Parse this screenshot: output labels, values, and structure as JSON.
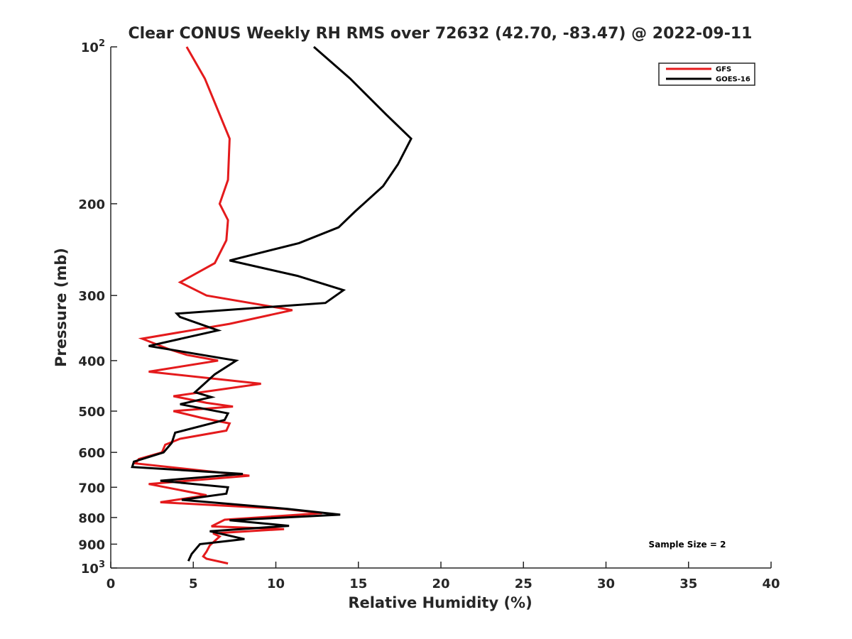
{
  "chart_data": {
    "type": "line",
    "title": "Clear CONUS Weekly RH RMS over 72632 (42.70, -83.47) @ 2022-09-11",
    "xlabel": "Relative Humidity (%)",
    "ylabel": "Pressure (mb)",
    "xlim": [
      0,
      40
    ],
    "ylim": [
      100,
      1000
    ],
    "y_scale": "log",
    "y_reversed": true,
    "grid": false,
    "legend_position": "top-right",
    "x_ticks": [
      "0",
      "5",
      "10",
      "15",
      "20",
      "25",
      "30",
      "35",
      "40"
    ],
    "y_ticks": [
      {
        "value": 100,
        "label": "10",
        "sup": "2"
      },
      {
        "value": 200,
        "label": "200",
        "sup": ""
      },
      {
        "value": 300,
        "label": "300",
        "sup": ""
      },
      {
        "value": 400,
        "label": "400",
        "sup": ""
      },
      {
        "value": 500,
        "label": "500",
        "sup": ""
      },
      {
        "value": 600,
        "label": "600",
        "sup": ""
      },
      {
        "value": 700,
        "label": "700",
        "sup": ""
      },
      {
        "value": 800,
        "label": "800",
        "sup": ""
      },
      {
        "value": 900,
        "label": "900",
        "sup": ""
      },
      {
        "value": 1000,
        "label": "10",
        "sup": "3"
      }
    ],
    "annotation": "Sample Size = 2",
    "series": [
      {
        "name": "GFS",
        "color": "#e41a1c",
        "points": [
          [
            4.6,
            100
          ],
          [
            5.7,
            115
          ],
          [
            7.2,
            150
          ],
          [
            7.1,
            180
          ],
          [
            6.6,
            200
          ],
          [
            7.1,
            215
          ],
          [
            7.0,
            235
          ],
          [
            6.3,
            260
          ],
          [
            4.2,
            283
          ],
          [
            5.8,
            300
          ],
          [
            11.0,
            320
          ],
          [
            7.2,
            340
          ],
          [
            1.9,
            363
          ],
          [
            3.5,
            380
          ],
          [
            4.6,
            390
          ],
          [
            6.5,
            400
          ],
          [
            2.3,
            420
          ],
          [
            9.1,
            443
          ],
          [
            3.8,
            468
          ],
          [
            5.8,
            482
          ],
          [
            7.4,
            490
          ],
          [
            3.8,
            500
          ],
          [
            5.5,
            515
          ],
          [
            7.2,
            528
          ],
          [
            7.0,
            545
          ],
          [
            4.2,
            565
          ],
          [
            3.3,
            580
          ],
          [
            3.1,
            600
          ],
          [
            1.7,
            618
          ],
          [
            1.5,
            630
          ],
          [
            8.4,
            665
          ],
          [
            2.3,
            690
          ],
          [
            5.8,
            725
          ],
          [
            3.0,
            748
          ],
          [
            10.5,
            770
          ],
          [
            12.8,
            785
          ],
          [
            6.9,
            808
          ],
          [
            6.1,
            832
          ],
          [
            10.5,
            842
          ],
          [
            6.2,
            858
          ],
          [
            6.6,
            870
          ],
          [
            6.0,
            905
          ],
          [
            5.8,
            930
          ],
          [
            5.6,
            950
          ],
          [
            5.8,
            960
          ],
          [
            7.1,
            980
          ]
        ]
      },
      {
        "name": "GOES-16",
        "color": "#000000",
        "points": [
          [
            12.3,
            100
          ],
          [
            14.5,
            115
          ],
          [
            16.7,
            135
          ],
          [
            18.2,
            150
          ],
          [
            17.4,
            168
          ],
          [
            16.5,
            185
          ],
          [
            14.8,
            207
          ],
          [
            13.8,
            222
          ],
          [
            11.4,
            238
          ],
          [
            7.2,
            257
          ],
          [
            11.3,
            275
          ],
          [
            14.1,
            293
          ],
          [
            13.0,
            310
          ],
          [
            4.0,
            325
          ],
          [
            4.2,
            330
          ],
          [
            6.5,
            350
          ],
          [
            2.3,
            375
          ],
          [
            7.6,
            400
          ],
          [
            6.3,
            425
          ],
          [
            5.1,
            460
          ],
          [
            6.1,
            470
          ],
          [
            4.2,
            485
          ],
          [
            7.1,
            505
          ],
          [
            6.9,
            520
          ],
          [
            3.9,
            550
          ],
          [
            3.7,
            575
          ],
          [
            3.2,
            600
          ],
          [
            1.4,
            625
          ],
          [
            1.3,
            640
          ],
          [
            8.0,
            660
          ],
          [
            3.0,
            680
          ],
          [
            7.1,
            700
          ],
          [
            7.0,
            720
          ],
          [
            4.3,
            740
          ],
          [
            10.7,
            770
          ],
          [
            13.9,
            790
          ],
          [
            7.2,
            810
          ],
          [
            10.8,
            830
          ],
          [
            6.0,
            850
          ],
          [
            8.1,
            880
          ],
          [
            5.4,
            900
          ],
          [
            4.9,
            940
          ],
          [
            4.7,
            970
          ]
        ]
      }
    ]
  }
}
